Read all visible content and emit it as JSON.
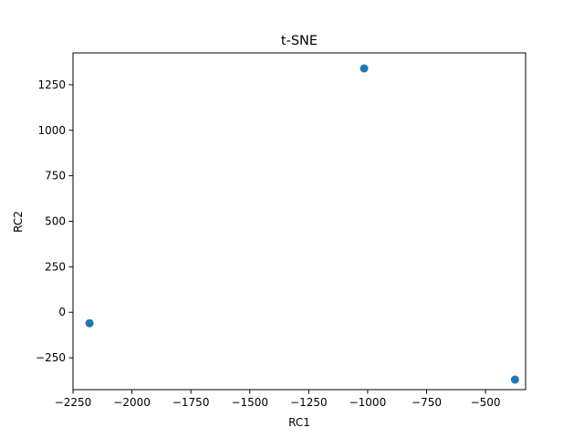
{
  "chart_data": {
    "type": "scatter",
    "title": "t-SNE",
    "xlabel": "RC1",
    "ylabel": "RC2",
    "xlim": [
      -2250,
      -330
    ],
    "ylim": [
      -425,
      1425
    ],
    "x_ticks": [
      -2250,
      -2000,
      -1750,
      -1500,
      -1250,
      -1000,
      -750,
      -500
    ],
    "y_ticks": [
      -250,
      0,
      250,
      500,
      750,
      1000,
      1250
    ],
    "x_tick_labels": [
      "−2250",
      "−2000",
      "−1750",
      "−1500",
      "−1250",
      "−1000",
      "−750",
      "−500"
    ],
    "y_tick_labels": [
      "−250",
      "0",
      "250",
      "500",
      "750",
      "1000",
      "1250"
    ],
    "grid": false,
    "series": [
      {
        "color": "#1f77b4",
        "points": [
          {
            "x": -2180,
            "y": -60
          },
          {
            "x": -1015,
            "y": 1340
          },
          {
            "x": -375,
            "y": -370
          }
        ]
      }
    ]
  }
}
